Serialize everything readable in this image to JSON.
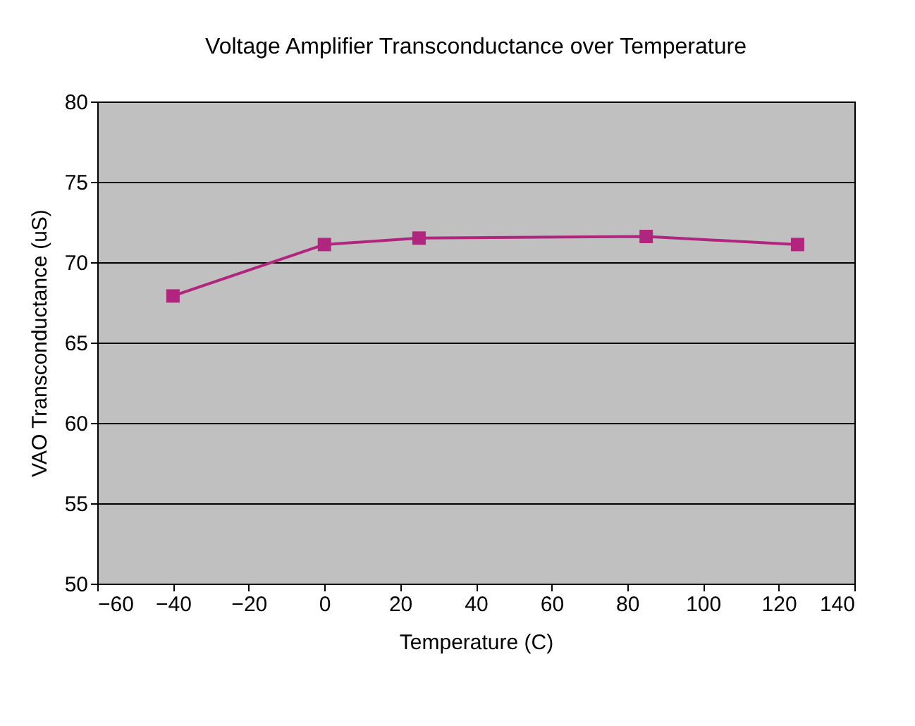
{
  "chart_data": {
    "type": "line",
    "title": "Voltage Amplifier Transconductance over Temperature",
    "xlabel": "Temperature (C)",
    "ylabel": "VAO Transconductance (uS)",
    "x": [
      -40,
      0,
      25,
      85,
      125
    ],
    "series": [
      {
        "color": "#b0267e",
        "values": [
          67.9,
          71.1,
          71.5,
          71.6,
          71.1
        ]
      }
    ],
    "xlim": [
      -60,
      140
    ],
    "xticks": [
      -60,
      -40,
      -20,
      0,
      20,
      40,
      60,
      80,
      100,
      120,
      140
    ],
    "ylim": [
      50,
      80
    ],
    "yticks": [
      50,
      55,
      60,
      65,
      70,
      75,
      80
    ],
    "grid": "y",
    "marker": "square",
    "line_style": "solid"
  }
}
